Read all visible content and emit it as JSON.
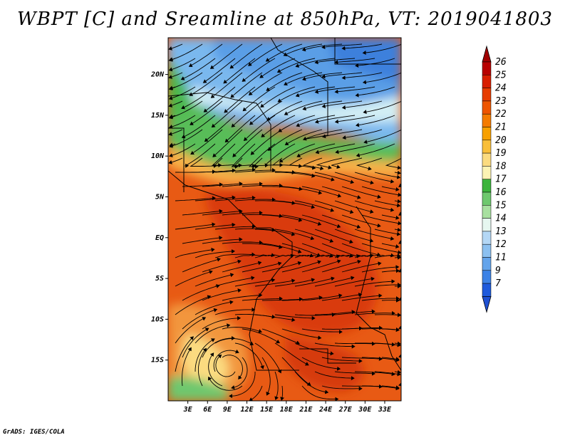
{
  "title": "WBPT [C] and Sreamline at 850hPa, VT: 2019041803",
  "credit": "GrADS: IGES/COLA",
  "map": {
    "variable": "Wet-bulb potential temperature (WBPT)",
    "units": "C",
    "level": "850hPa",
    "valid_time": "2019041803",
    "lat_ticks": [
      "20N",
      "15N",
      "10N",
      "5N",
      "EQ",
      "5S",
      "10S",
      "15S"
    ],
    "lat_values": [
      20,
      15,
      10,
      5,
      0,
      -5,
      -10,
      -15
    ],
    "lon_ticks": [
      "3E",
      "6E",
      "9E",
      "12E",
      "15E",
      "18E",
      "21E",
      "24E",
      "27E",
      "30E",
      "33E"
    ],
    "lon_values": [
      3,
      6,
      9,
      12,
      15,
      18,
      21,
      24,
      27,
      30,
      33
    ],
    "lat_range": [
      -20,
      24.5
    ],
    "lon_range": [
      0,
      35.5
    ]
  },
  "colorbar": {
    "labels": [
      "26",
      "25",
      "24",
      "23",
      "22",
      "21",
      "20",
      "19",
      "18",
      "17",
      "16",
      "15",
      "14",
      "13",
      "12",
      "11",
      "9",
      "7"
    ],
    "colors": [
      "#b80000",
      "#d81e00",
      "#e63c00",
      "#ee5500",
      "#f47b00",
      "#f7a000",
      "#f9bf3a",
      "#fbdb80",
      "#fcf3b4",
      "#3cb43c",
      "#6ec86e",
      "#a8e0a0",
      "#e6f7f0",
      "#b4d7f5",
      "#8cc0f0",
      "#64a4eb",
      "#3c82e6",
      "#1e5adc"
    ],
    "top_arrow_color": "#a00000",
    "bottom_arrow_color": "#1e50d2"
  }
}
